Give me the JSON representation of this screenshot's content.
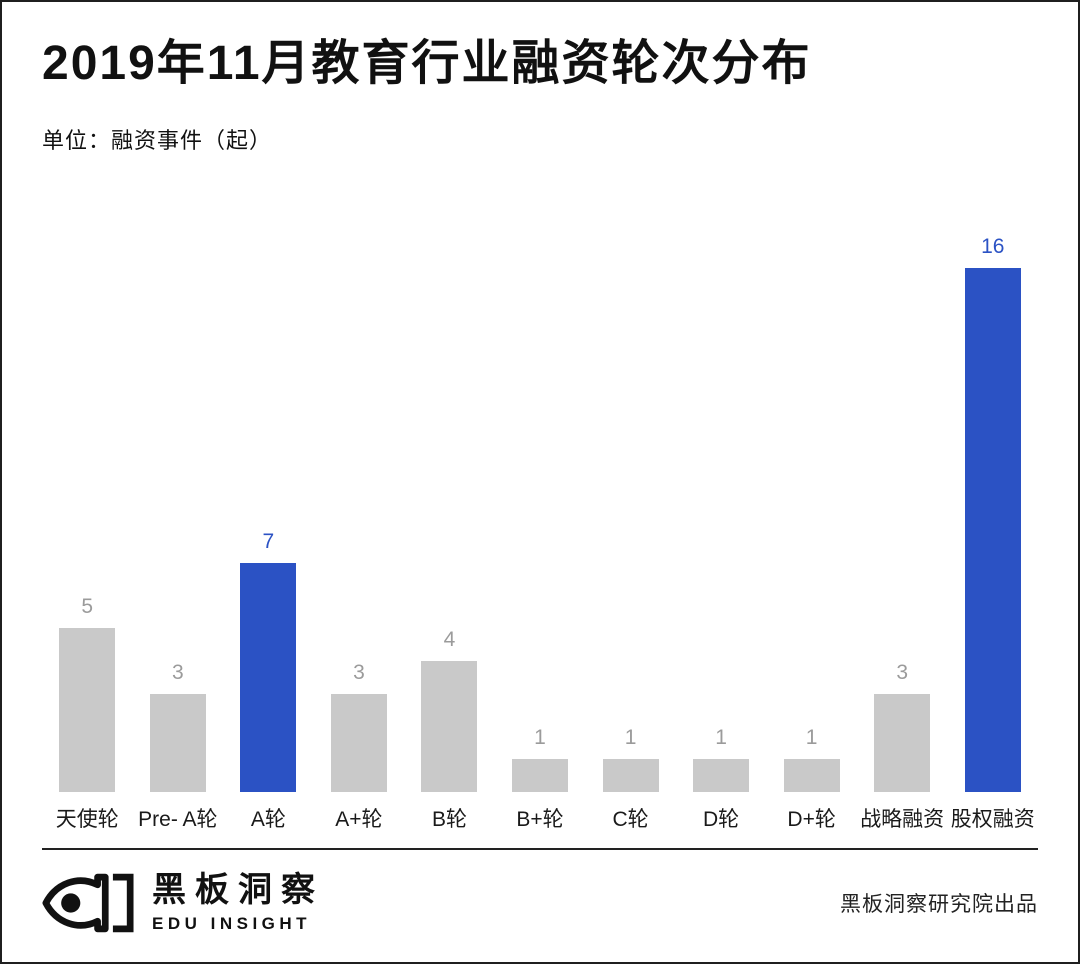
{
  "header": {
    "title": "2019年11月教育行业融资轮次分布",
    "unit_label": "单位：融资事件（起）"
  },
  "chart_data": {
    "type": "bar",
    "categories": [
      "天使轮",
      "Pre- A轮",
      "A轮",
      "A+轮",
      "B轮",
      "B+轮",
      "C轮",
      "D轮",
      "D+轮",
      "战略融资",
      "股权融资"
    ],
    "values": [
      5,
      3,
      7,
      3,
      4,
      1,
      1,
      1,
      1,
      3,
      16
    ],
    "highlight_indices": [
      2,
      10
    ],
    "title": "2019年11月教育行业融资轮次分布",
    "xlabel": "",
    "ylabel": "融资事件（起）",
    "ylim": [
      0,
      16
    ],
    "grid": false,
    "value_labels": true,
    "legend": "none"
  },
  "colors": {
    "bar_default": "#c9c9c9",
    "bar_highlight": "#2b52c4",
    "value_default": "#9b9b9b",
    "value_highlight": "#2b52c4",
    "title_text": "#111111",
    "divider": "#222222"
  },
  "footer": {
    "brand_name": "黑板洞察",
    "brand_subtitle": "EDU INSIGHT",
    "credit": "黑板洞察研究院出品"
  }
}
